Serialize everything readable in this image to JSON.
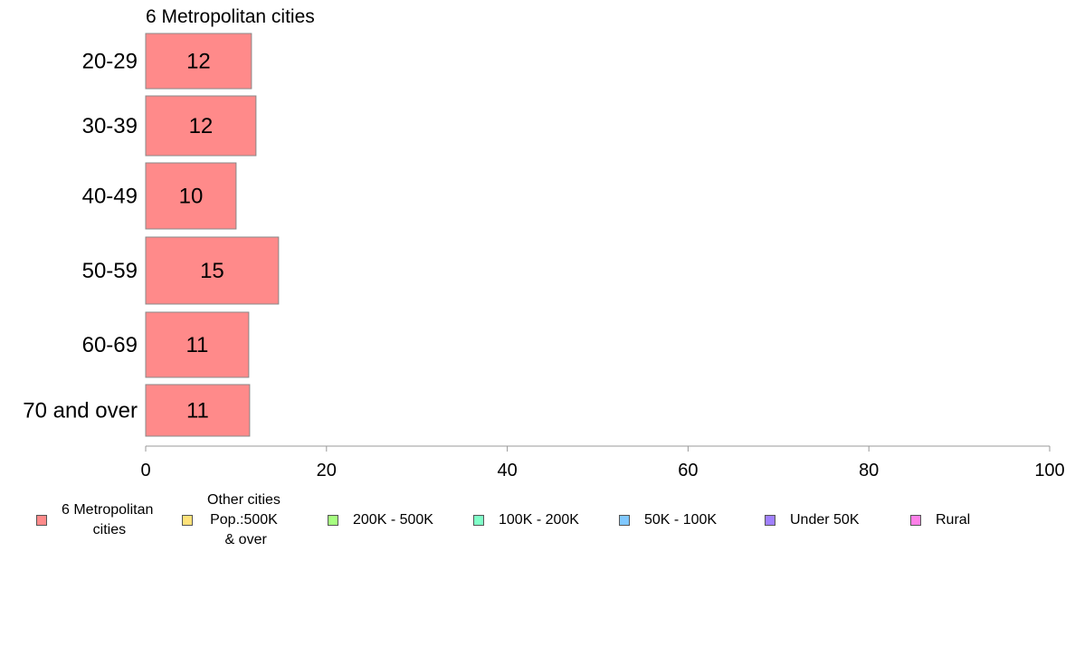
{
  "chart_data": {
    "type": "bar",
    "orientation": "horizontal",
    "panel_title": "6 Metropolitan cities",
    "categories": [
      "20-29",
      "30-39",
      "40-49",
      "50-59",
      "60-69",
      "70 and over"
    ],
    "series": [
      {
        "name": "6 Metropolitan\n cities",
        "color": "#ff8a8a",
        "values": [
          11.7,
          12.2,
          10.0,
          14.7,
          11.4,
          11.5
        ],
        "value_labels": [
          "12",
          "12",
          "10",
          "15",
          "11",
          "11"
        ]
      }
    ],
    "xlim": [
      0,
      100
    ],
    "x_ticks": [
      0,
      20,
      40,
      60,
      80,
      100
    ],
    "x_tick_labels": [
      "0",
      "20",
      "40",
      "60",
      "80",
      "100"
    ],
    "grid": false,
    "legend_position": "bottom",
    "legend": [
      {
        "label": "6 Metropolitan\n cities",
        "color": "#ff8a8a"
      },
      {
        "label": "Other cities\nPop.:500K\n & over",
        "color": "#ffe27a"
      },
      {
        "label": "200K - 500K",
        "color": "#a6ff80"
      },
      {
        "label": "100K - 200K",
        "color": "#80ffc8"
      },
      {
        "label": "50K - 100K",
        "color": "#80c8ff"
      },
      {
        "label": "Under 50K",
        "color": "#a080ff"
      },
      {
        "label": "Rural",
        "color": "#ff80e8"
      }
    ]
  }
}
